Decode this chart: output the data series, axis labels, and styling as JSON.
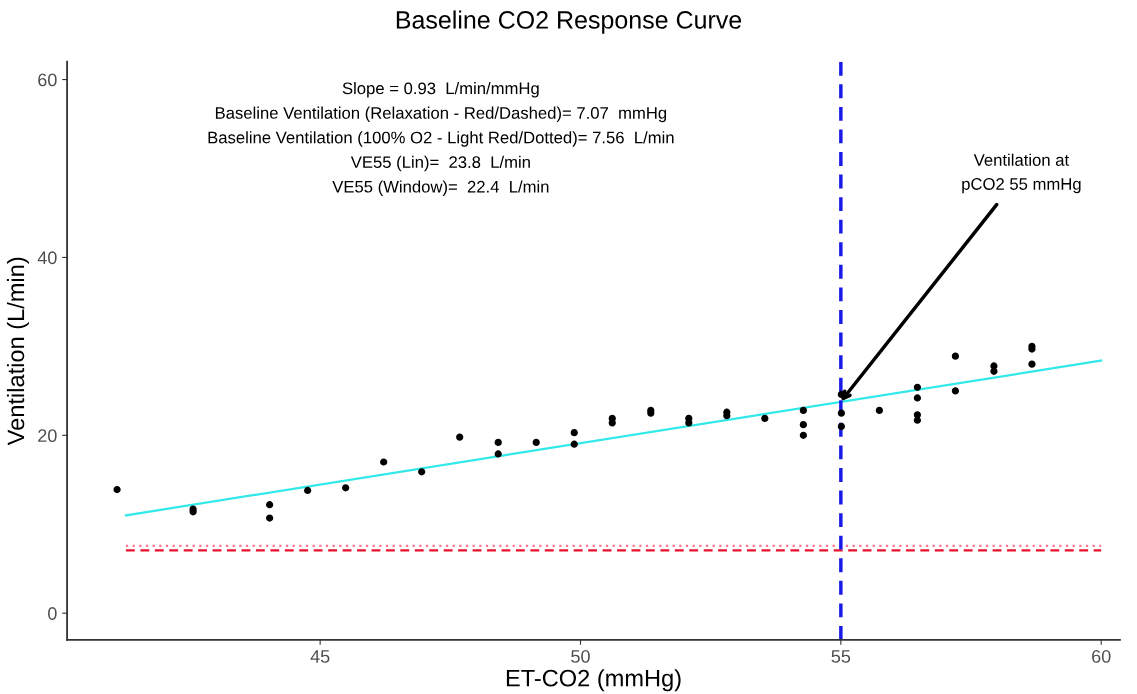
{
  "chart_data": {
    "type": "scatter",
    "title": "Baseline CO2 Response Curve",
    "xlabel": "ET-CO2 (mmHg)",
    "ylabel": "Ventilation (L/min)",
    "xlim": [
      40.14,
      60.36
    ],
    "ylim": [
      -3,
      62
    ],
    "xticks": [
      45,
      50,
      55,
      60
    ],
    "yticks": [
      0,
      20,
      40,
      60
    ],
    "grid": false,
    "legend": false,
    "series": [
      {
        "marker": "circle",
        "color": "#000000",
        "x": [
          41.1,
          42.56,
          42.56,
          44.03,
          44.03,
          44.76,
          45.49,
          46.22,
          46.95,
          47.68,
          48.42,
          48.42,
          49.15,
          49.88,
          49.88,
          50.61,
          50.61,
          51.35,
          51.35,
          52.08,
          52.08,
          52.81,
          52.81,
          53.54,
          54.28,
          54.28,
          54.28,
          55.01,
          55.01,
          55.01,
          55.74,
          56.47,
          56.47,
          56.47,
          56.47,
          57.2,
          57.2,
          57.94,
          57.94,
          58.67,
          58.67,
          58.67
        ],
        "values": [
          13.9,
          11.4,
          11.7,
          12.2,
          10.7,
          13.8,
          14.1,
          17.0,
          15.9,
          19.8,
          19.2,
          17.9,
          19.2,
          20.3,
          19.0,
          21.9,
          21.4,
          22.8,
          22.5,
          21.9,
          21.4,
          22.6,
          22.2,
          21.9,
          22.8,
          21.2,
          20.0,
          24.6,
          22.5,
          21.0,
          22.8,
          25.4,
          24.2,
          22.3,
          21.7,
          28.9,
          25.0,
          27.8,
          27.2,
          30.0,
          29.7,
          28.0
        ]
      },
      {
        "type": "line",
        "color": "#33e8e8",
        "line_style": "solid",
        "x": [
          41.27,
          60
        ],
        "values": [
          11.0,
          28.4
        ]
      },
      {
        "type": "line",
        "color": "#e8112d",
        "line_style": "dashed",
        "x": [
          41.27,
          60
        ],
        "values": [
          7.07,
          7.07
        ]
      },
      {
        "type": "line",
        "color": "#ff7390",
        "line_style": "dotted",
        "x": [
          41.27,
          60
        ],
        "values": [
          7.56,
          7.56
        ]
      }
    ],
    "ref_lines": [
      {
        "axis": "x",
        "value": 55,
        "color": "#1a1ae6",
        "line_style": "dashed"
      }
    ],
    "annotations": [
      "Slope = 0.93  L/min/mmHg",
      "Baseline Ventilation (Relaxation - Red/Dashed)= 7.07  mmHg",
      "Baseline Ventilation (100% O2 - Light Red/Dotted)= 7.56  L/min",
      "VE55 (Lin)=  23.8  L/min",
      "VE55 (Window)=  22.4  L/min",
      {
        "text": "Ventilation at\npCO2 55 mmHg",
        "x": 55,
        "y": 23.8
      }
    ]
  }
}
